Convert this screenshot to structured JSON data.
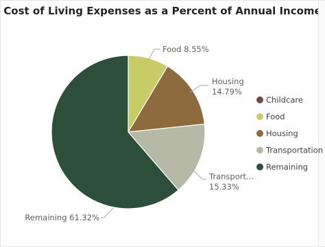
{
  "title": "Cost of Living Expenses as a Percent of Annual Income",
  "chart_data": {
    "type": "pie",
    "title": "Cost of Living Expenses as a Percent of Annual Income",
    "slices": [
      {
        "name": "Childcare",
        "value": 0.0,
        "color": "#6b4a4c"
      },
      {
        "name": "Food",
        "value": 8.55,
        "color": "#c7cc66"
      },
      {
        "name": "Housing",
        "value": 14.79,
        "color": "#8e6a3f"
      },
      {
        "name": "Transportation",
        "value": 15.33,
        "color": "#b6b9a5"
      },
      {
        "name": "Remaining",
        "value": 61.32,
        "color": "#2c4e3b"
      }
    ],
    "data_labels": [
      {
        "series": "Food",
        "name": "Food",
        "value": "8.55%"
      },
      {
        "series": "Housing",
        "name": "Housing",
        "value": "14.79%"
      },
      {
        "series": "Transportation",
        "name": "Transport...",
        "value": "15.33%"
      },
      {
        "series": "Remaining",
        "name": "Remaining",
        "value": "61.32%"
      }
    ],
    "legend": {
      "position": "right",
      "items": [
        "Childcare",
        "Food",
        "Housing",
        "Transportation",
        "Remaining"
      ]
    }
  }
}
